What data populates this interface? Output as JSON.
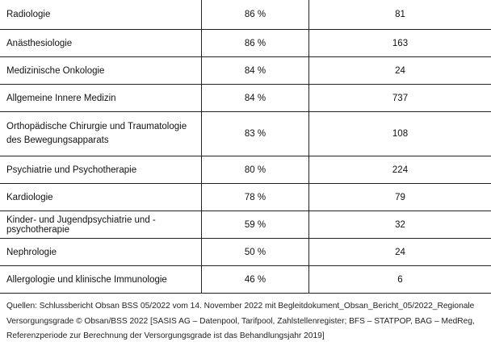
{
  "table": {
    "rows": [
      {
        "specialty": "Radiologie",
        "percent": "86 %",
        "count": "81"
      },
      {
        "specialty": "Anästhesiologie",
        "percent": "86 %",
        "count": "163"
      },
      {
        "specialty": "Medizinische Onkologie",
        "percent": "84 %",
        "count": "24"
      },
      {
        "specialty": "Allgemeine Innere Medizin",
        "percent": "84 %",
        "count": "737"
      },
      {
        "specialty": "Orthopädische Chirurgie und Traumatologie des Bewegungsapparats",
        "percent": "83 %",
        "count": "108"
      },
      {
        "specialty": "Psychiatrie und Psychotherapie",
        "percent": "80 %",
        "count": "224"
      },
      {
        "specialty": "Kardiologie",
        "percent": "78 %",
        "count": "79"
      },
      {
        "specialty": "Kinder- und Jugendpsychiatrie und -psychotherapie",
        "percent": "59 %",
        "count": "32"
      },
      {
        "specialty": "Nephrologie",
        "percent": "50 %",
        "count": "24"
      },
      {
        "specialty": "Allergologie und klinische Immunologie",
        "percent": "46 %",
        "count": "6"
      }
    ]
  },
  "caption": "Quellen: Schlussbericht Obsan BSS 05/2022 vom 14. November 2022 mit Begleitdokument_Obsan_Bericht_05/2022_Regionale Versorgungsgrade © Obsan/BSS 2022 [SASIS AG – Datenpool, Tarifpool, Zahlstellenregister; BFS – STATPOP, BAG – MedReg, Referenzperiode zur Berechnung der Versorgungsgrade ist das Behandlungsjahr 2019]"
}
